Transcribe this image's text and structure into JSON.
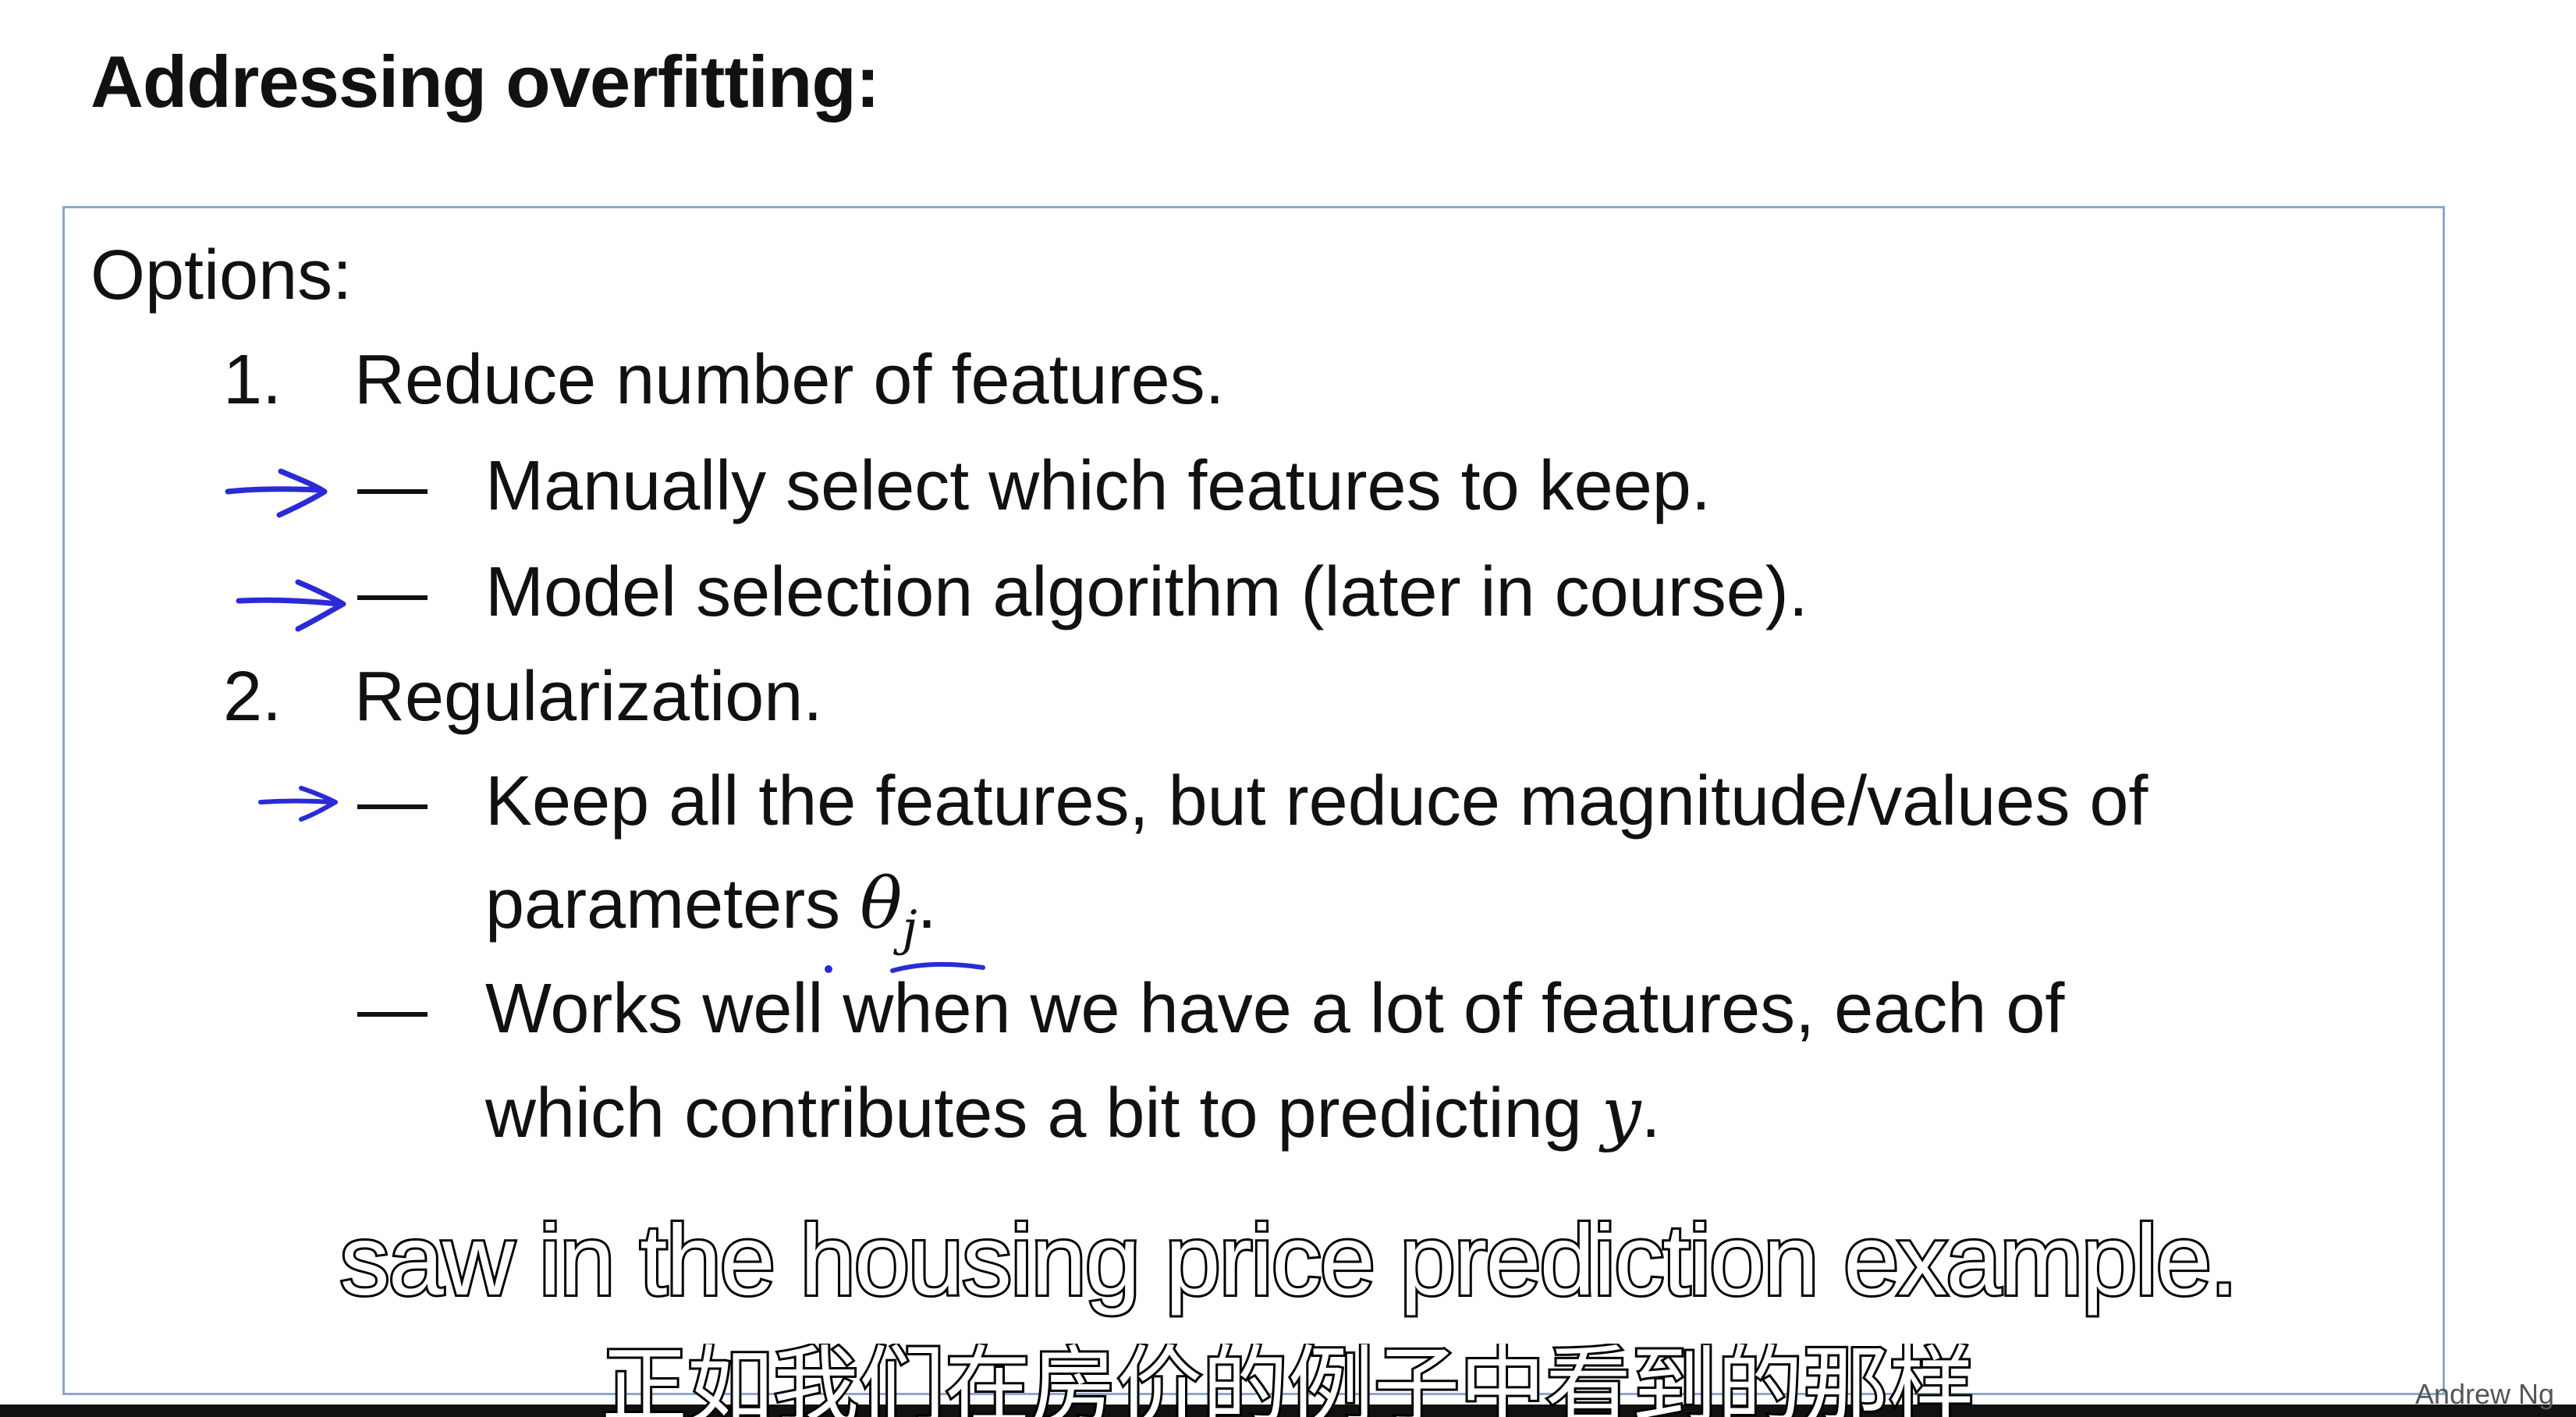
{
  "title": "Addressing overfitting:",
  "options_label": "Options:",
  "items": [
    {
      "number": "1.",
      "text": "Reduce number of features.",
      "subitems": [
        {
          "dash": "—",
          "text": "Manually select which features to keep."
        },
        {
          "dash": "—",
          "text": "Model selection algorithm (later in course)."
        }
      ]
    },
    {
      "number": "2.",
      "text": "Regularization.",
      "subitems": [
        {
          "dash": "—",
          "text": "Keep all the features, but reduce magnitude/values of",
          "text2": "parameters",
          "math": "θ",
          "math_sub": "j",
          "after": "."
        },
        {
          "dash": "—",
          "text": "Works well when we have a lot of features, each of",
          "text2": "which contributes a bit to predicting",
          "math": "y",
          "after": "."
        }
      ]
    }
  ],
  "subtitle_en": "saw in the housing price prediction example.",
  "subtitle_zh": "正如我们在房价的例子中看到的那样",
  "author": "Andrew Ng",
  "colors": {
    "annotation_ink": "#2a2ad6",
    "box_border": "#8fa7cf"
  }
}
